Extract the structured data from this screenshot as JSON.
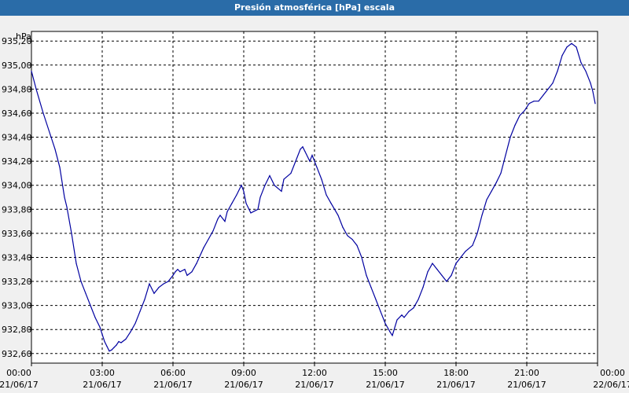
{
  "window": {
    "title": "Presión atmosférica [hPa] escala"
  },
  "chart_data": {
    "type": "line",
    "title": "Presión atmosférica [hPa] escala",
    "ylabel": "hPa",
    "xlabel": "",
    "ylim": [
      932.52,
      935.28
    ],
    "xlim_hours": [
      0,
      24
    ],
    "grid": true,
    "line_color": "#0000a0",
    "y_ticks": [
      {
        "value": 935.2,
        "label": "935,20"
      },
      {
        "value": 935.0,
        "label": "935,00"
      },
      {
        "value": 934.8,
        "label": "934,80"
      },
      {
        "value": 934.6,
        "label": "934,60"
      },
      {
        "value": 934.4,
        "label": "934,40"
      },
      {
        "value": 934.2,
        "label": "934,20"
      },
      {
        "value": 934.0,
        "label": "934,00"
      },
      {
        "value": 933.8,
        "label": "933,80"
      },
      {
        "value": 933.6,
        "label": "933,60"
      },
      {
        "value": 933.4,
        "label": "933,40"
      },
      {
        "value": 933.2,
        "label": "933,20"
      },
      {
        "value": 933.0,
        "label": "933,00"
      },
      {
        "value": 932.8,
        "label": "932,80"
      },
      {
        "value": 932.6,
        "label": "932,60"
      }
    ],
    "x_ticks": [
      {
        "hour": 0,
        "time": "00:00",
        "date": "21/06/17"
      },
      {
        "hour": 3,
        "time": "03:00",
        "date": "21/06/17"
      },
      {
        "hour": 6,
        "time": "06:00",
        "date": "21/06/17"
      },
      {
        "hour": 9,
        "time": "09:00",
        "date": "21/06/17"
      },
      {
        "hour": 12,
        "time": "12:00",
        "date": "21/06/17"
      },
      {
        "hour": 15,
        "time": "15:00",
        "date": "21/06/17"
      },
      {
        "hour": 18,
        "time": "18:00",
        "date": "21/06/17"
      },
      {
        "hour": 21,
        "time": "21:00",
        "date": "21/06/17"
      },
      {
        "hour": 24,
        "time": "00:00",
        "date": "22/06/17"
      }
    ],
    "series": [
      {
        "x_hours": [
          0,
          0.2,
          0.5,
          0.8,
          1.0,
          1.2,
          1.4,
          1.5,
          1.7,
          1.9,
          2.1,
          2.3,
          2.5,
          2.7,
          2.9,
          3.0,
          3.1,
          3.2,
          3.3,
          3.4,
          3.5,
          3.6,
          3.7,
          3.8,
          4.0,
          4.2,
          4.4,
          4.6,
          4.8,
          5.0,
          5.2,
          5.4,
          5.6,
          5.8,
          6.0,
          6.1,
          6.2,
          6.3,
          6.5,
          6.6,
          6.8,
          7.0,
          7.3,
          7.5,
          7.7,
          7.9,
          8.0,
          8.2,
          8.3,
          8.5,
          8.7,
          8.9,
          9.0,
          9.1,
          9.3,
          9.6,
          9.7,
          9.9,
          10.1,
          10.3,
          10.6,
          10.7,
          11.0,
          11.2,
          11.4,
          11.5,
          11.6,
          11.8,
          11.9,
          12.1,
          12.3,
          12.5,
          12.7,
          13.0,
          13.2,
          13.4,
          13.6,
          13.8,
          14.0,
          14.2,
          14.4,
          14.6,
          14.8,
          15.0,
          15.2,
          15.3,
          15.5,
          15.7,
          15.8,
          16.0,
          16.2,
          16.4,
          16.6,
          16.8,
          17.0,
          17.2,
          17.4,
          17.6,
          17.8,
          17.9,
          18.0,
          18.2,
          18.4,
          18.7,
          18.9,
          19.1,
          19.3,
          19.5,
          19.7,
          19.9,
          20.1,
          20.3,
          20.5,
          20.7,
          20.9,
          21.1,
          21.3,
          21.5,
          21.7,
          21.9,
          22.1,
          22.3,
          22.5,
          22.7,
          22.9,
          23.1,
          23.3,
          23.5,
          23.7,
          23.8,
          23.9
        ],
        "values": [
          934.95,
          934.8,
          934.6,
          934.42,
          934.3,
          934.15,
          933.9,
          933.82,
          933.6,
          933.35,
          933.2,
          933.1,
          933.0,
          932.9,
          932.82,
          932.76,
          932.7,
          932.66,
          932.62,
          932.63,
          932.65,
          932.67,
          932.7,
          932.69,
          932.72,
          932.78,
          932.85,
          932.95,
          933.05,
          933.18,
          933.1,
          933.15,
          933.18,
          933.2,
          933.25,
          933.28,
          933.3,
          933.28,
          933.3,
          933.25,
          933.28,
          933.35,
          933.48,
          933.55,
          933.62,
          933.72,
          933.75,
          933.7,
          933.78,
          933.85,
          933.92,
          934.0,
          933.95,
          933.85,
          933.77,
          933.8,
          933.9,
          934.0,
          934.08,
          934.0,
          933.95,
          934.05,
          934.1,
          934.2,
          934.3,
          934.32,
          934.28,
          934.2,
          934.25,
          934.15,
          934.05,
          933.92,
          933.85,
          933.75,
          933.65,
          933.58,
          933.55,
          933.5,
          933.4,
          933.25,
          933.15,
          933.05,
          932.95,
          932.85,
          932.78,
          932.75,
          932.88,
          932.92,
          932.9,
          932.95,
          932.98,
          933.05,
          933.15,
          933.28,
          933.35,
          933.3,
          933.25,
          933.2,
          933.25,
          933.3,
          933.35,
          933.4,
          933.45,
          933.5,
          933.6,
          933.75,
          933.88,
          933.95,
          934.02,
          934.1,
          934.25,
          934.4,
          934.5,
          934.58,
          934.62,
          934.68,
          934.7,
          934.7,
          934.75,
          934.8,
          934.85,
          934.95,
          935.08,
          935.15,
          935.18,
          935.15,
          935.02,
          934.95,
          934.85,
          934.78,
          934.68
        ]
      }
    ]
  }
}
